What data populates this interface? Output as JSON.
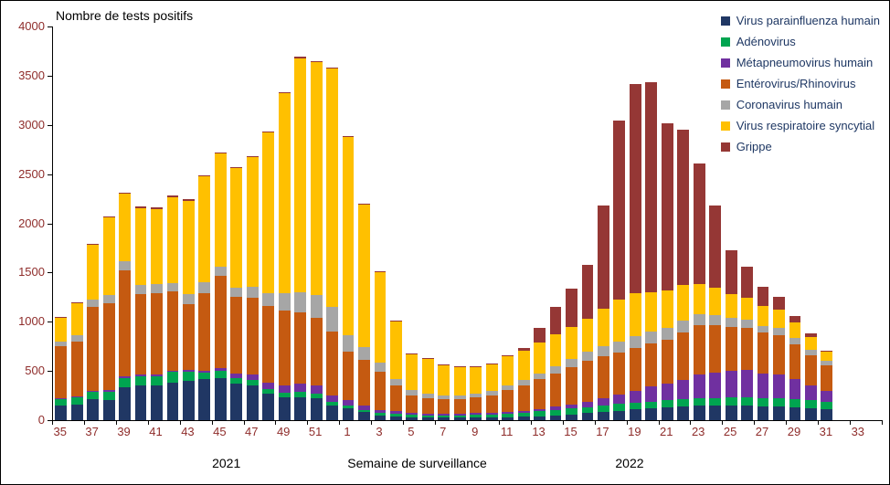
{
  "title": "Nombre de tests positifs",
  "axis": {
    "x_label": "Semaine de surveillance",
    "year_left": "2021",
    "year_right": "2022",
    "y_ticks": [
      "0",
      "500",
      "1000",
      "1500",
      "2000",
      "2500",
      "3000",
      "3500",
      "4000"
    ]
  },
  "colors": {
    "axis_text": "#8f2d2b",
    "legend_text": "#1f3864",
    "frame_border": "#000000"
  },
  "chart_data": {
    "type": "bar",
    "stacked": true,
    "title": "Nombre de tests positifs",
    "xlabel": "Semaine de surveillance",
    "ylabel": "Nombre de tests positifs",
    "ylim": [
      0,
      4000
    ],
    "grid": false,
    "legend_position": "top-right",
    "slots": 52,
    "label_every": 2,
    "weeks": [
      35,
      36,
      37,
      38,
      39,
      40,
      41,
      42,
      43,
      44,
      45,
      46,
      47,
      48,
      49,
      50,
      51,
      52,
      1,
      2,
      3,
      4,
      5,
      6,
      7,
      8,
      9,
      10,
      11,
      12,
      13,
      14,
      15,
      16,
      17,
      18,
      19,
      20,
      21,
      22,
      23,
      24,
      25,
      26,
      27,
      28,
      29,
      30,
      31,
      32,
      33,
      34
    ],
    "series": [
      {
        "name": "Virus parainfluenza humain",
        "color": "#203764",
        "values": [
          150,
          160,
          210,
          200,
          330,
          350,
          350,
          380,
          400,
          420,
          430,
          370,
          350,
          270,
          230,
          230,
          220,
          150,
          120,
          80,
          50,
          40,
          30,
          25,
          25,
          25,
          25,
          30,
          30,
          35,
          40,
          50,
          60,
          70,
          80,
          95,
          110,
          120,
          130,
          140,
          150,
          150,
          150,
          150,
          140,
          140,
          130,
          120,
          110
        ]
      },
      {
        "name": "Adénovirus",
        "color": "#00a550",
        "values": [
          60,
          70,
          80,
          90,
          100,
          100,
          100,
          110,
          90,
          60,
          70,
          60,
          60,
          50,
          50,
          60,
          50,
          40,
          30,
          25,
          25,
          25,
          25,
          25,
          25,
          25,
          30,
          30,
          35,
          40,
          50,
          55,
          60,
          60,
          65,
          70,
          70,
          70,
          70,
          70,
          75,
          75,
          80,
          80,
          80,
          85,
          85,
          80,
          75
        ]
      },
      {
        "name": "Métapneumovirus humain",
        "color": "#7030a0",
        "values": [
          10,
          10,
          10,
          15,
          15,
          15,
          15,
          15,
          20,
          20,
          30,
          40,
          50,
          60,
          70,
          80,
          80,
          60,
          50,
          40,
          30,
          25,
          20,
          15,
          15,
          15,
          15,
          15,
          20,
          20,
          25,
          30,
          40,
          55,
          75,
          95,
          120,
          150,
          170,
          200,
          240,
          260,
          270,
          280,
          250,
          240,
          200,
          150,
          110
        ]
      },
      {
        "name": "Entérovirus/Rhinovirus",
        "color": "#c55a11",
        "values": [
          530,
          560,
          850,
          880,
          1080,
          820,
          830,
          800,
          670,
          790,
          940,
          780,
          780,
          780,
          760,
          730,
          690,
          650,
          500,
          470,
          390,
          260,
          180,
          160,
          150,
          150,
          160,
          180,
          220,
          260,
          300,
          340,
          380,
          420,
          430,
          430,
          430,
          440,
          450,
          480,
          500,
          480,
          450,
          430,
          420,
          400,
          360,
          310,
          260
        ]
      },
      {
        "name": "Coronavirus humain",
        "color": "#a6a6a6",
        "values": [
          50,
          60,
          80,
          90,
          90,
          90,
          90,
          90,
          100,
          110,
          90,
          100,
          120,
          130,
          180,
          200,
          230,
          250,
          160,
          130,
          90,
          70,
          50,
          45,
          40,
          40,
          40,
          40,
          50,
          55,
          60,
          70,
          80,
          90,
          100,
          110,
          120,
          125,
          120,
          120,
          110,
          100,
          90,
          80,
          70,
          70,
          60,
          55,
          50
        ]
      },
      {
        "name": "Virus respiratoire syncytial",
        "color": "#ffc000",
        "values": [
          240,
          330,
          550,
          785,
          685,
          780,
          760,
          870,
          950,
          1080,
          1150,
          1210,
          1310,
          1630,
          2030,
          2380,
          2370,
          2420,
          2020,
          1445,
          915,
          580,
          365,
          350,
          305,
          285,
          270,
          275,
          295,
          300,
          315,
          330,
          330,
          335,
          380,
          430,
          440,
          395,
          380,
          360,
          310,
          280,
          240,
          220,
          200,
          190,
          160,
          130,
          90
        ]
      },
      {
        "name": "Grippe",
        "color": "#953735",
        "values": [
          10,
          10,
          10,
          10,
          10,
          15,
          15,
          15,
          20,
          10,
          10,
          10,
          10,
          10,
          10,
          10,
          10,
          10,
          10,
          10,
          10,
          10,
          10,
          10,
          10,
          10,
          10,
          10,
          10,
          20,
          150,
          275,
          390,
          550,
          1050,
          1810,
          2130,
          2130,
          1700,
          1580,
          1225,
          835,
          450,
          320,
          200,
          125,
          65,
          35,
          15
        ]
      }
    ]
  }
}
